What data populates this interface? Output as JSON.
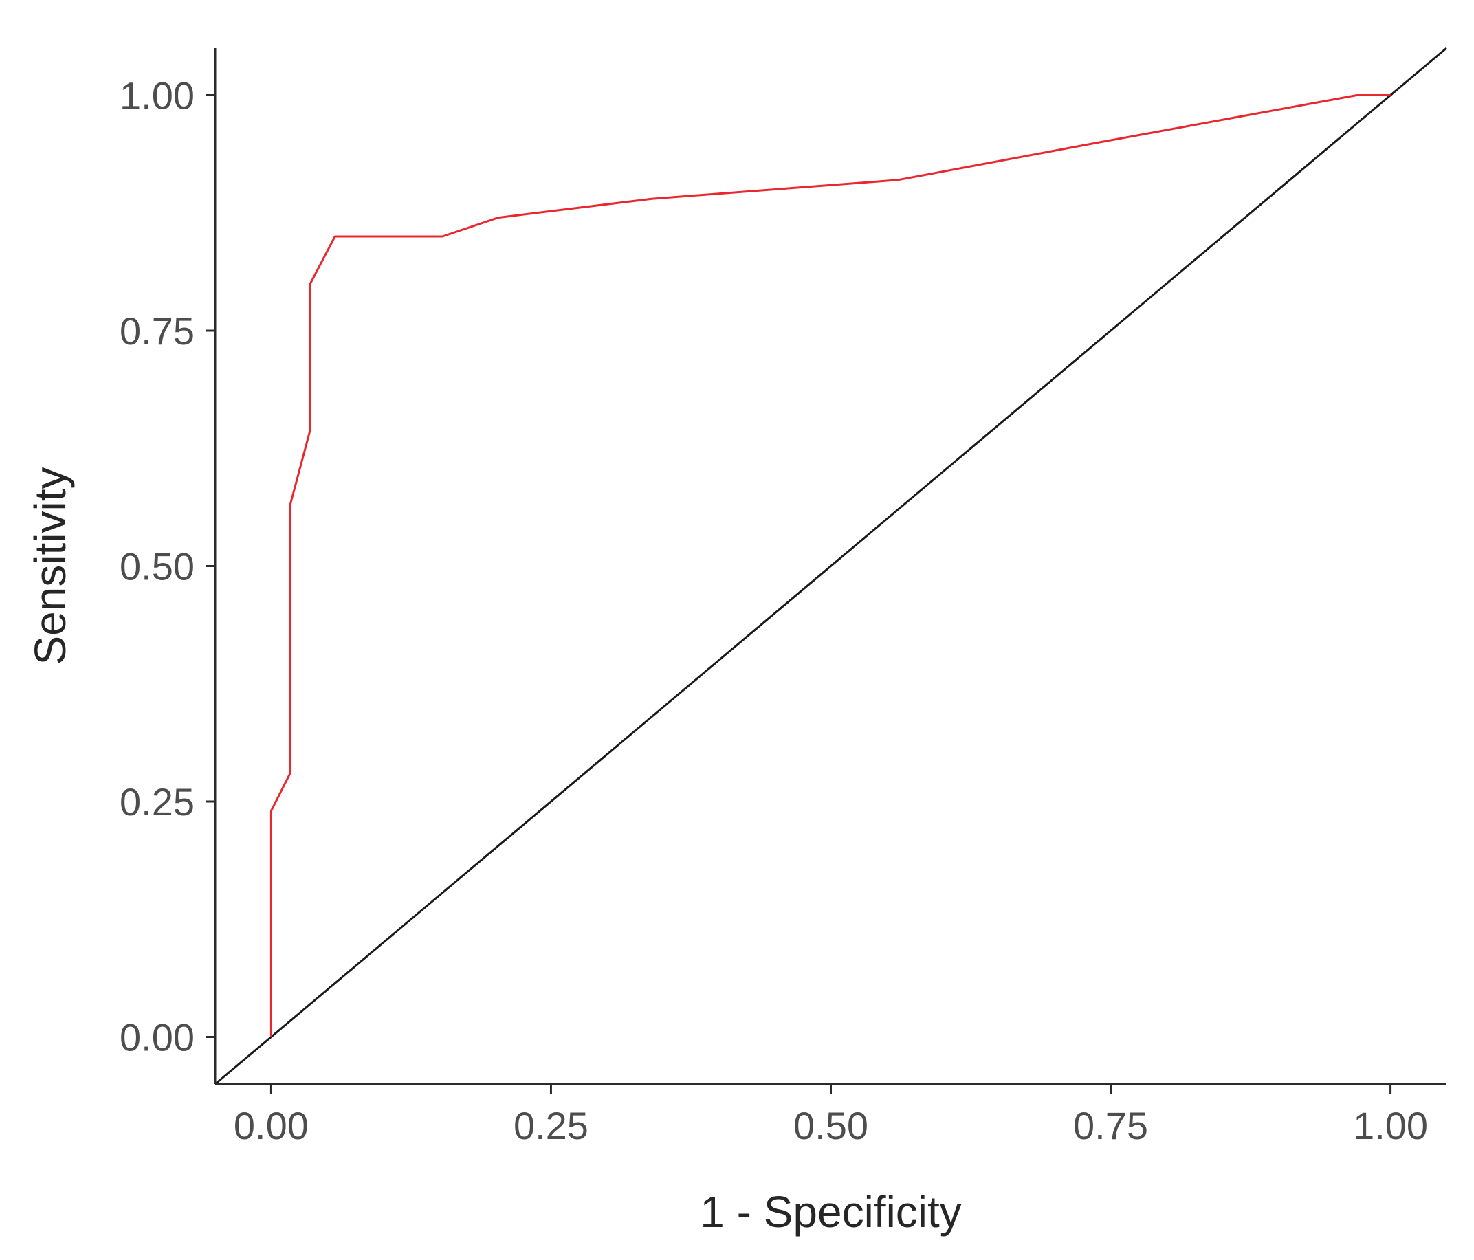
{
  "chart_data": {
    "type": "line",
    "title": "",
    "xlabel": "1 - Specificity",
    "ylabel": "Sensitivity",
    "xlim": [
      -0.05,
      1.05
    ],
    "ylim": [
      -0.05,
      1.05
    ],
    "x_ticks": [
      0,
      0.25,
      0.5,
      0.75,
      1
    ],
    "x_tick_labels": [
      "0.00",
      "0.25",
      "0.50",
      "0.75",
      "1.00"
    ],
    "y_ticks": [
      0,
      0.25,
      0.5,
      0.75,
      1
    ],
    "y_tick_labels": [
      "0.00",
      "0.25",
      "0.50",
      "0.75",
      "1.00"
    ],
    "grid": false,
    "legend": "none",
    "series": [
      {
        "color": "#e8282f",
        "x": [
          0.0,
          0.0,
          0.017,
          0.017,
          0.035,
          0.035,
          0.057,
          0.153,
          0.203,
          0.34,
          0.56,
          0.74,
          0.97,
          1.0
        ],
        "y": [
          0.0,
          0.24,
          0.28,
          0.565,
          0.645,
          0.8,
          0.85,
          0.85,
          0.87,
          0.89,
          0.91,
          0.95,
          1.0,
          1.0
        ]
      }
    ],
    "reference_line": {
      "color": "#1a1a1a",
      "x": [
        -0.05,
        1.05
      ],
      "y": [
        -0.05,
        1.05
      ]
    }
  }
}
